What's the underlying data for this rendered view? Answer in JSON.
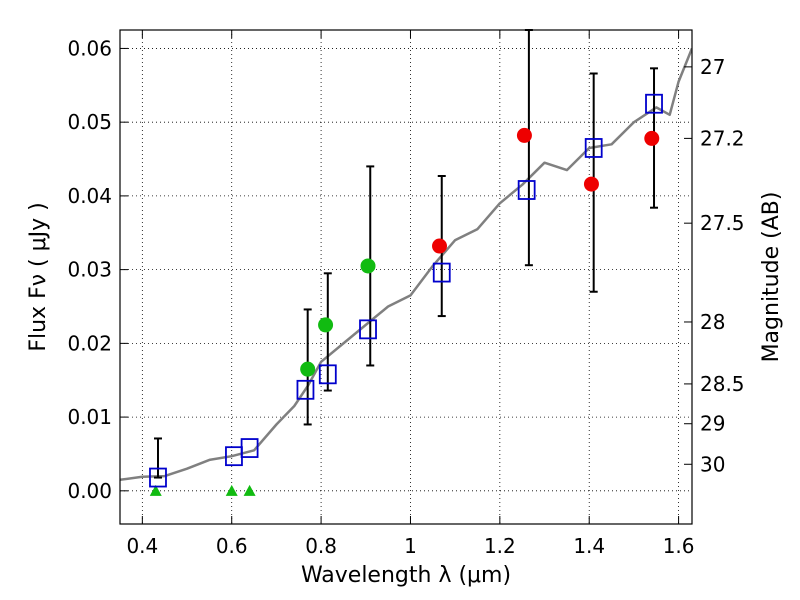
{
  "chart_data": {
    "type": "scatter",
    "xlabel": "Wavelength  λ (μm)",
    "ylabel": "Flux  Fν  ( μJy )",
    "y2label": "Magnitude (AB)",
    "xlim": [
      0.35,
      1.63
    ],
    "ylim": [
      -0.0045,
      0.0625
    ],
    "x_ticks": [
      0.4,
      0.6,
      0.8,
      1.0,
      1.2,
      1.4,
      1.6
    ],
    "x_tick_labels": [
      "0.4",
      "0.6",
      "0.8",
      "1",
      "1.2",
      "1.4",
      "1.6"
    ],
    "y_ticks": [
      0.0,
      0.01,
      0.02,
      0.03,
      0.04,
      0.05,
      0.06
    ],
    "y_tick_labels": [
      "0.00",
      "0.01",
      "0.02",
      "0.03",
      "0.04",
      "0.05",
      "0.06"
    ],
    "y2_ticks": [
      {
        "label": "27",
        "flux": 0.0575
      },
      {
        "label": "27.2",
        "flux": 0.0478
      },
      {
        "label": "27.5",
        "flux": 0.0363
      },
      {
        "label": "28",
        "flux": 0.0229
      },
      {
        "label": "28.5",
        "flux": 0.0145
      },
      {
        "label": "29",
        "flux": 0.0091
      },
      {
        "label": "30",
        "flux": 0.0036
      }
    ],
    "grid": true,
    "colors": {
      "spectrum": "#808080",
      "green": "#11bb11",
      "red": "#ee0000",
      "model_box": "#0000cc",
      "errorbar": "#000000"
    },
    "spectrum": {
      "name": "",
      "x": [
        0.35,
        0.4,
        0.45,
        0.5,
        0.55,
        0.6,
        0.65,
        0.7,
        0.74,
        0.77,
        0.8,
        0.85,
        0.9,
        0.95,
        1.0,
        1.05,
        1.1,
        1.15,
        1.2,
        1.25,
        1.3,
        1.35,
        1.4,
        1.45,
        1.5,
        1.55,
        1.58,
        1.6,
        1.63
      ],
      "y": [
        0.0015,
        0.0019,
        0.002,
        0.003,
        0.0042,
        0.0047,
        0.0055,
        0.009,
        0.0115,
        0.0142,
        0.0175,
        0.02,
        0.0225,
        0.025,
        0.0265,
        0.0305,
        0.034,
        0.0355,
        0.039,
        0.0415,
        0.0445,
        0.0435,
        0.0465,
        0.047,
        0.05,
        0.052,
        0.051,
        0.0555,
        0.06
      ]
    },
    "green_points": {
      "x": [
        0.77,
        0.81,
        0.905
      ],
      "y": [
        0.0165,
        0.0225,
        0.0305
      ]
    },
    "green_upper_limits": {
      "x": [
        0.43,
        0.6,
        0.64
      ],
      "y": [
        0.0,
        0.0,
        0.0
      ]
    },
    "red_points": {
      "x": [
        1.065,
        1.255,
        1.405,
        1.54
      ],
      "y": [
        0.0332,
        0.0482,
        0.0416,
        0.0478
      ]
    },
    "model_boxes": {
      "x": [
        0.435,
        0.605,
        0.64,
        0.765,
        0.815,
        0.905,
        1.07,
        1.26,
        1.41,
        1.545
      ],
      "y": [
        0.0018,
        0.0047,
        0.0058,
        0.0137,
        0.0158,
        0.0219,
        0.0296,
        0.0408,
        0.0465,
        0.0525
      ]
    },
    "error_bars": [
      {
        "x": 0.435,
        "low": 0.0018,
        "high": 0.0071
      },
      {
        "x": 0.77,
        "low": 0.009,
        "high": 0.0246
      },
      {
        "x": 0.815,
        "low": 0.0136,
        "high": 0.0295
      },
      {
        "x": 0.91,
        "low": 0.017,
        "high": 0.044
      },
      {
        "x": 1.07,
        "low": 0.0237,
        "high": 0.0427
      },
      {
        "x": 1.265,
        "low": 0.0306,
        "high": 0.0625
      },
      {
        "x": 1.41,
        "low": 0.027,
        "high": 0.0566
      },
      {
        "x": 1.545,
        "low": 0.0384,
        "high": 0.0573
      }
    ]
  }
}
